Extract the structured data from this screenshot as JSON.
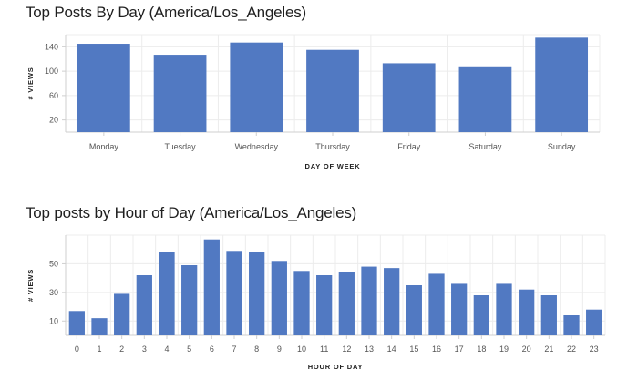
{
  "chart_data": [
    {
      "type": "bar",
      "title": "Top Posts By Day (America/Los_Angeles)",
      "xlabel": "DAY OF WEEK",
      "ylabel": "# VIEWS",
      "categories": [
        "Monday",
        "Tuesday",
        "Wednesday",
        "Thursday",
        "Friday",
        "Saturday",
        "Sunday"
      ],
      "values": [
        145,
        127,
        147,
        135,
        113,
        108,
        155
      ],
      "yticks": [
        20,
        60,
        100,
        140
      ],
      "ylim": [
        0,
        160
      ],
      "grid": true,
      "bar_color": "#5179c2"
    },
    {
      "type": "bar",
      "title": "Top posts by Hour of Day (America/Los_Angeles)",
      "xlabel": "HOUR OF DAY",
      "ylabel": "# VIEWS",
      "categories": [
        "0",
        "1",
        "2",
        "3",
        "4",
        "5",
        "6",
        "7",
        "8",
        "9",
        "10",
        "11",
        "12",
        "13",
        "14",
        "15",
        "16",
        "17",
        "18",
        "19",
        "20",
        "21",
        "22",
        "23"
      ],
      "values": [
        17,
        12,
        29,
        42,
        58,
        49,
        67,
        59,
        58,
        52,
        45,
        42,
        44,
        48,
        47,
        35,
        43,
        36,
        28,
        36,
        32,
        28,
        14,
        18
      ],
      "yticks": [
        10,
        30,
        50
      ],
      "ylim": [
        0,
        70
      ],
      "grid": true,
      "bar_color": "#5179c2"
    }
  ]
}
